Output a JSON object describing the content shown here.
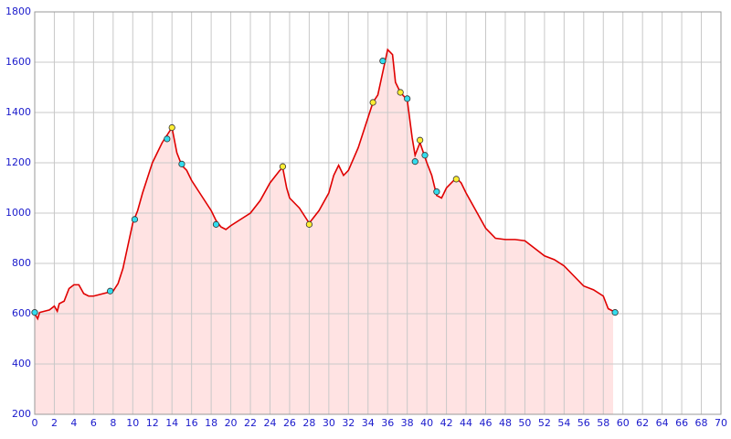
{
  "chart_data": {
    "type": "area",
    "xlim": [
      0,
      70
    ],
    "ylim": [
      200,
      1800
    ],
    "xticks": [
      0,
      2,
      4,
      6,
      8,
      10,
      12,
      14,
      16,
      18,
      20,
      22,
      24,
      26,
      28,
      30,
      32,
      34,
      36,
      38,
      40,
      42,
      44,
      46,
      48,
      50,
      52,
      54,
      56,
      58,
      60,
      62,
      64,
      66,
      68,
      70
    ],
    "yticks": [
      200,
      400,
      600,
      800,
      1000,
      1200,
      1400,
      1600,
      1800
    ],
    "grid": true,
    "series": [
      {
        "color": "#e00000",
        "fill": "#ffe3e3",
        "x": [
          0,
          0.3,
          0.5,
          1,
          1.5,
          2,
          2.3,
          2.5,
          3,
          3.5,
          4,
          4.5,
          5,
          5.5,
          6,
          7,
          8,
          8.5,
          9,
          9.5,
          10,
          10.5,
          11,
          11.5,
          12,
          12.5,
          13,
          13.5,
          14,
          14.5,
          15,
          15.5,
          16,
          17,
          18,
          18.5,
          19,
          19.5,
          20,
          21,
          22,
          23,
          24,
          25,
          25.3,
          25.7,
          26,
          27,
          28,
          29,
          30,
          30.5,
          31,
          31.5,
          32,
          33,
          34,
          34.5,
          35,
          35.5,
          36,
          36.5,
          36.8,
          37.3,
          38,
          38.5,
          38.8,
          39.3,
          40,
          40.5,
          41,
          41.5,
          42,
          43,
          43.5,
          44,
          45,
          46,
          47,
          48,
          49,
          50,
          51,
          52,
          53,
          54,
          55,
          56,
          57,
          58,
          58.5,
          59
        ],
        "values": [
          600,
          580,
          605,
          610,
          615,
          630,
          610,
          640,
          650,
          700,
          715,
          715,
          680,
          670,
          670,
          680,
          690,
          720,
          780,
          870,
          960,
          1010,
          1080,
          1140,
          1200,
          1240,
          1280,
          1310,
          1340,
          1240,
          1190,
          1170,
          1130,
          1070,
          1010,
          970,
          945,
          935,
          950,
          975,
          1000,
          1050,
          1120,
          1170,
          1180,
          1100,
          1060,
          1020,
          960,
          1010,
          1080,
          1150,
          1190,
          1150,
          1170,
          1260,
          1380,
          1440,
          1470,
          1560,
          1650,
          1630,
          1520,
          1480,
          1450,
          1300,
          1230,
          1280,
          1200,
          1150,
          1070,
          1060,
          1100,
          1140,
          1120,
          1080,
          1010,
          940,
          900,
          895,
          895,
          890,
          860,
          830,
          815,
          790,
          750,
          710,
          695,
          670,
          620,
          610
        ]
      }
    ],
    "markers": [
      {
        "color": "#33ddee",
        "x": [
          0,
          7.7,
          10.2,
          13.5,
          15,
          18.5,
          35.5,
          38,
          38.8,
          39.8,
          41,
          59.2
        ],
        "values": [
          605,
          690,
          975,
          1295,
          1195,
          955,
          1605,
          1455,
          1205,
          1230,
          1085,
          605
        ]
      },
      {
        "color": "#ffee33",
        "x": [
          14,
          25.3,
          28,
          34.5,
          37.3,
          39.3,
          43
        ],
        "values": [
          1340,
          1185,
          955,
          1440,
          1480,
          1290,
          1135
        ]
      }
    ]
  }
}
